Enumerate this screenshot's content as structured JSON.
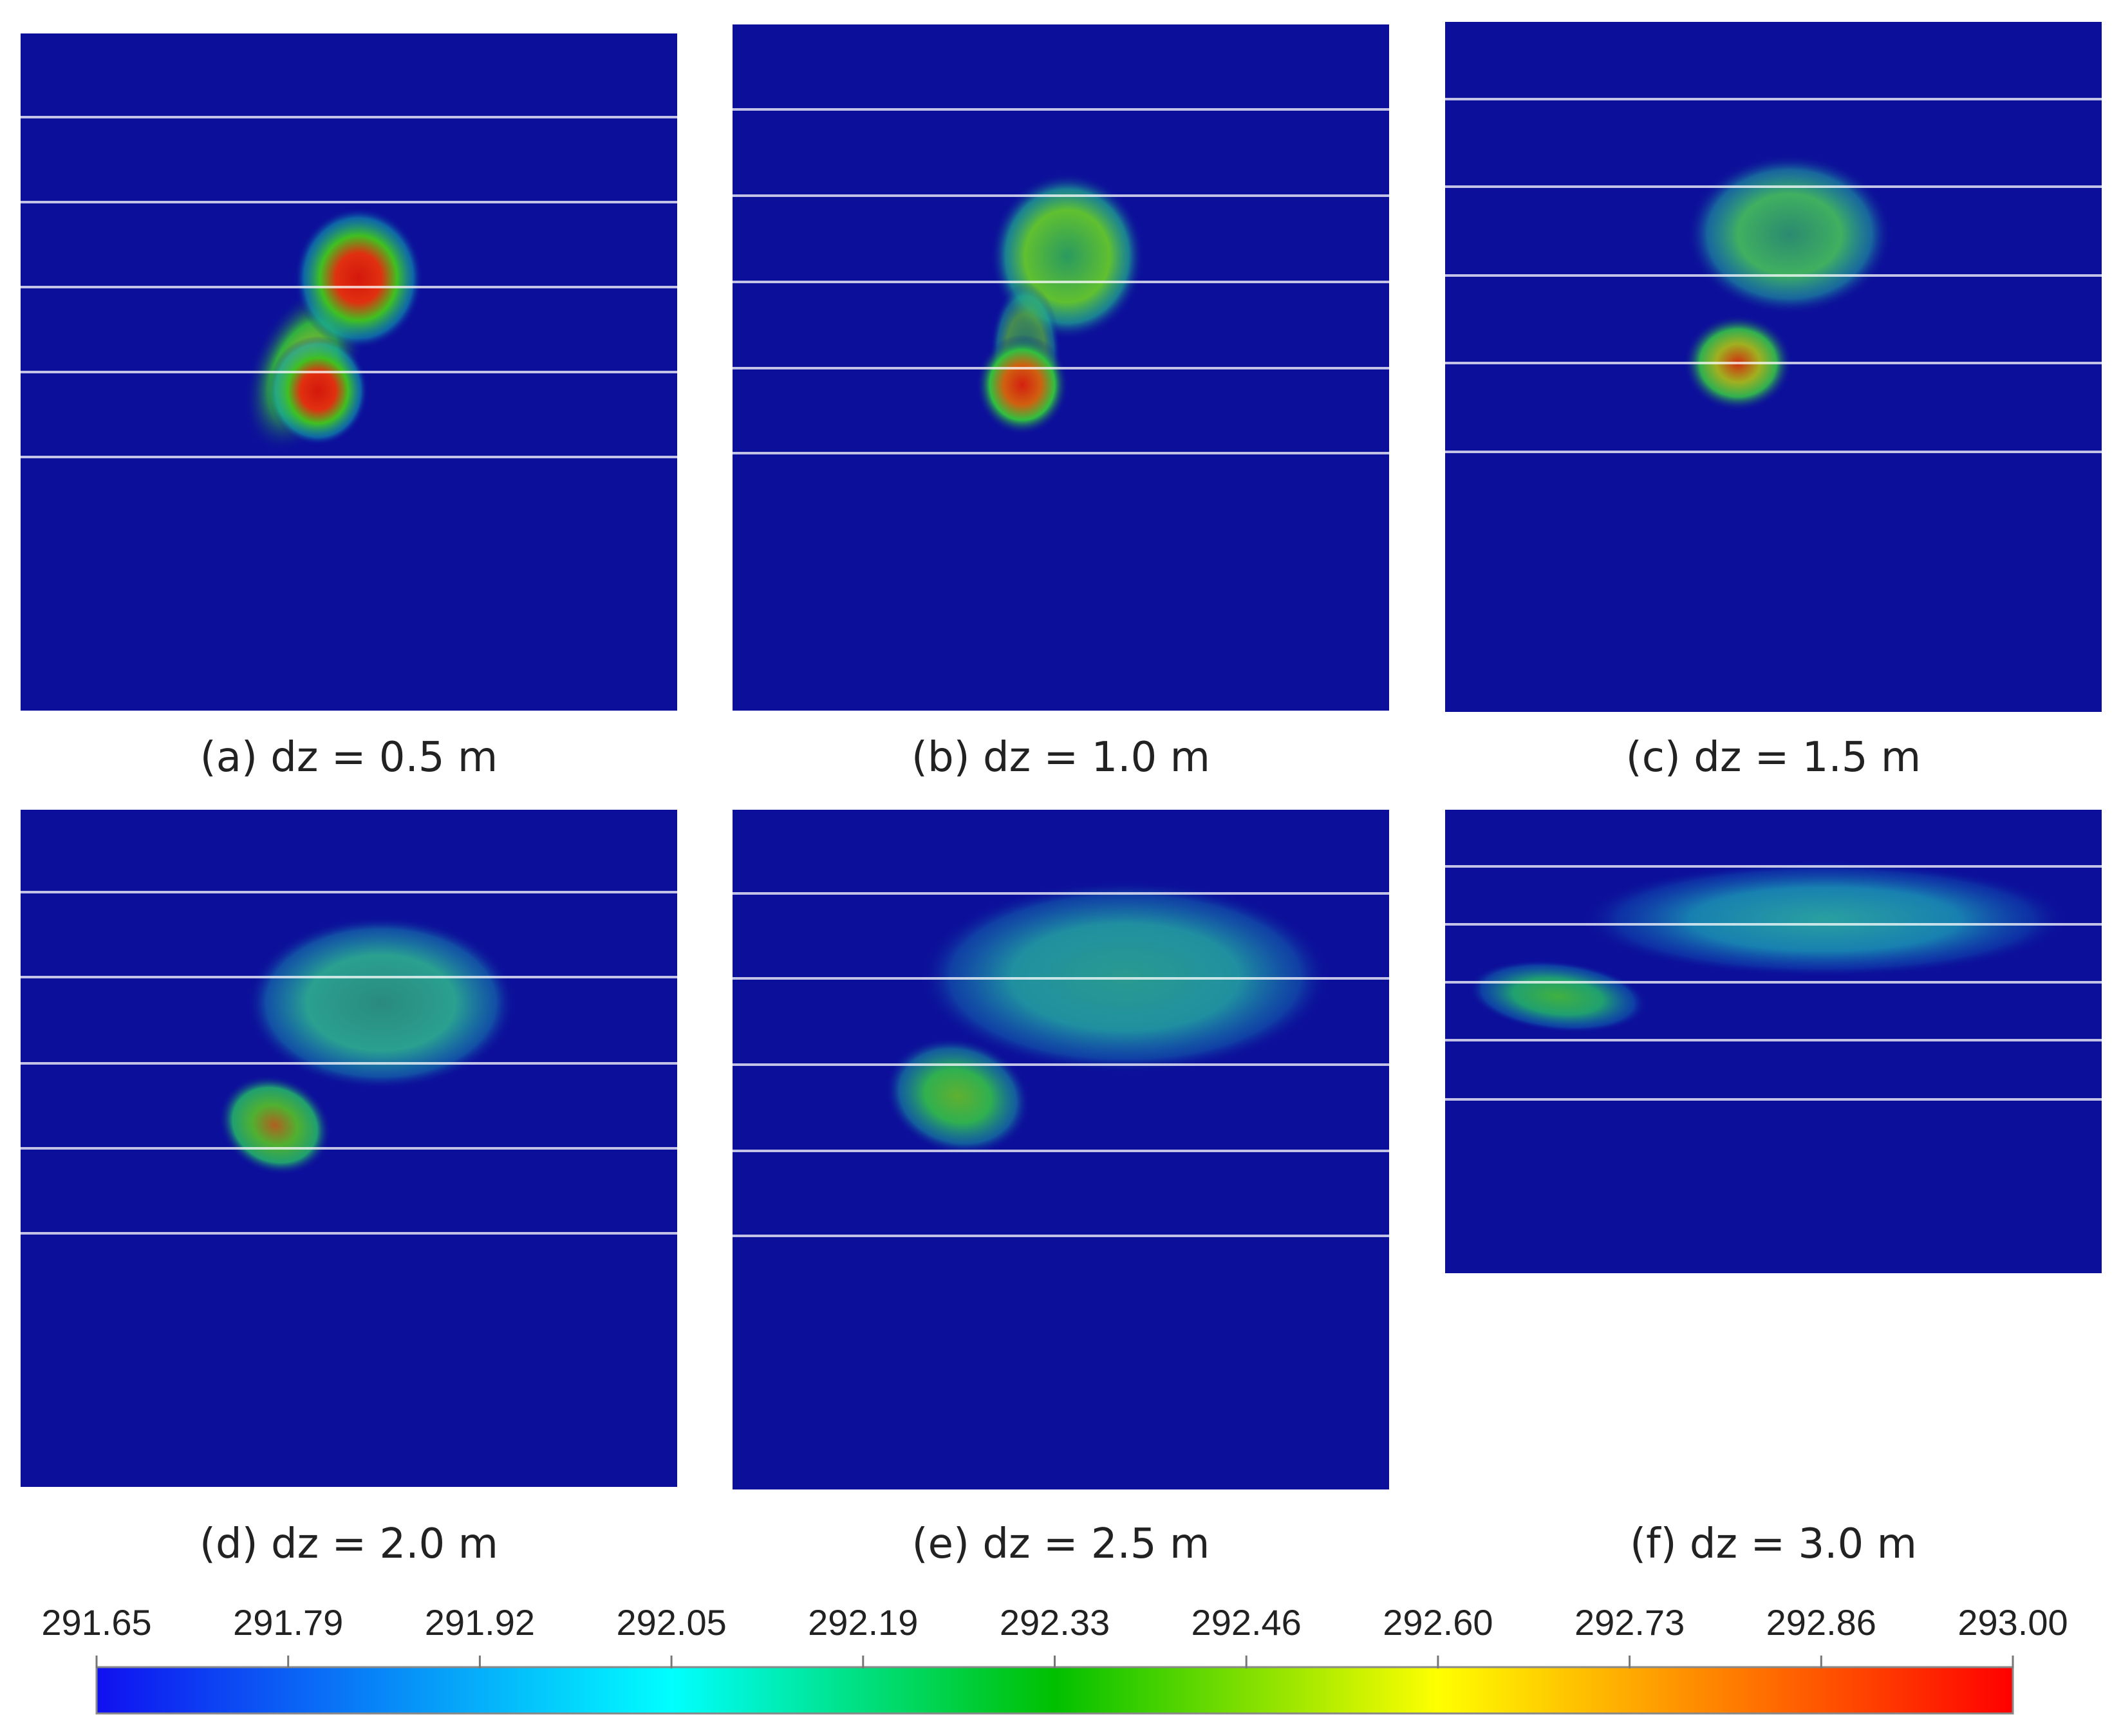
{
  "figure": {
    "panels": [
      {
        "id": "a",
        "caption": "(a) dz = 0.5 m"
      },
      {
        "id": "b",
        "caption": "(b) dz = 1.0 m"
      },
      {
        "id": "c",
        "caption": "(c) dz = 1.5 m"
      },
      {
        "id": "d",
        "caption": "(d) dz = 2.0 m"
      },
      {
        "id": "e",
        "caption": "(e) dz = 2.5 m"
      },
      {
        "id": "f",
        "caption": "(f) dz = 3.0 m"
      }
    ],
    "colorbar": {
      "min": 291.65,
      "max": 293.0,
      "tick_labels": [
        "291.65",
        "291.79",
        "291.92",
        "292.05",
        "292.19",
        "292.33",
        "292.46",
        "292.60",
        "292.73",
        "292.86",
        "293.00"
      ],
      "colors": [
        "#1010f0",
        "#00ffff",
        "#00c000",
        "#ffff00",
        "#ff0000"
      ]
    },
    "field_background": "#0c0f9a"
  }
}
